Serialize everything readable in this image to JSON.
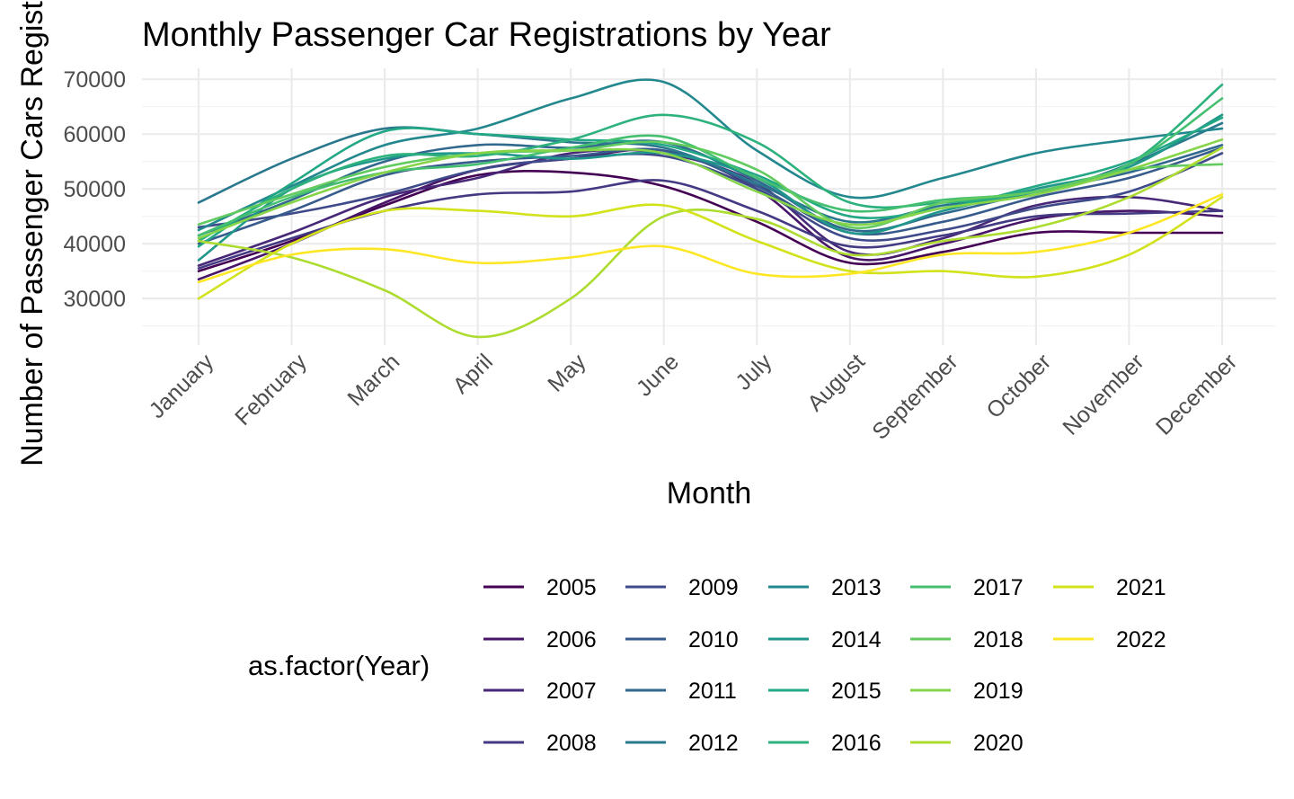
{
  "chart_data": {
    "type": "line",
    "title": "Monthly Passenger Car Registrations by Year",
    "xlabel": "Month",
    "ylabel": "Number of Passenger Cars Registered",
    "categories": [
      "January",
      "February",
      "March",
      "April",
      "May",
      "June",
      "July",
      "August",
      "September",
      "October",
      "November",
      "December"
    ],
    "y_ticks": [
      30000,
      40000,
      50000,
      60000,
      70000
    ],
    "ylim": [
      21500,
      72000
    ],
    "grid": true,
    "legend": {
      "title": "as.factor(Year)",
      "position": "bottom",
      "columns": 5
    },
    "series": [
      {
        "name": "2005",
        "color": "#440154",
        "values": [
          35000,
          40500,
          47000,
          52500,
          53000,
          50500,
          44000,
          36500,
          38500,
          42000,
          42000,
          42000
        ]
      },
      {
        "name": "2006",
        "color": "#481668",
        "values": [
          33500,
          40000,
          47500,
          53500,
          55500,
          57000,
          50000,
          37500,
          40000,
          44500,
          46000,
          45000
        ]
      },
      {
        "name": "2007",
        "color": "#482878",
        "values": [
          36000,
          42000,
          48500,
          52000,
          56500,
          56500,
          51000,
          38500,
          41000,
          47000,
          48500,
          46000
        ]
      },
      {
        "name": "2008",
        "color": "#443983",
        "values": [
          35500,
          41000,
          46000,
          49000,
          49500,
          51500,
          46000,
          39500,
          41500,
          45000,
          45500,
          46000
        ]
      },
      {
        "name": "2009",
        "color": "#3e4a89",
        "values": [
          43000,
          45500,
          49000,
          53500,
          55500,
          56000,
          50000,
          41000,
          42500,
          46500,
          49500,
          56500
        ]
      },
      {
        "name": "2010",
        "color": "#375b8d",
        "values": [
          40000,
          46000,
          52500,
          55000,
          56000,
          57000,
          50500,
          42000,
          44000,
          48500,
          52000,
          57500
        ]
      },
      {
        "name": "2011",
        "color": "#31688e",
        "values": [
          41500,
          48000,
          55000,
          58000,
          57500,
          58500,
          51500,
          42500,
          45500,
          49500,
          53000,
          58000
        ]
      },
      {
        "name": "2012",
        "color": "#2a788e",
        "values": [
          47500,
          55500,
          61000,
          60000,
          58500,
          57500,
          51000,
          44000,
          47000,
          49000,
          54500,
          62000
        ]
      },
      {
        "name": "2013",
        "color": "#23888e",
        "values": [
          42500,
          50500,
          58000,
          61000,
          66500,
          69500,
          57000,
          48500,
          52000,
          56500,
          59000,
          61000
        ]
      },
      {
        "name": "2014",
        "color": "#1f988b",
        "values": [
          37000,
          50000,
          55500,
          56500,
          55500,
          56500,
          52000,
          42000,
          46000,
          50000,
          54000,
          63500
        ]
      },
      {
        "name": "2015",
        "color": "#22a884",
        "values": [
          39500,
          51000,
          60500,
          60000,
          59000,
          58000,
          52500,
          45000,
          46500,
          50500,
          55000,
          63000
        ]
      },
      {
        "name": "2016",
        "color": "#2db27d",
        "values": [
          40500,
          50000,
          56000,
          56000,
          59000,
          63500,
          58500,
          47500,
          47500,
          49500,
          54500,
          69000
        ]
      },
      {
        "name": "2017",
        "color": "#44bf70",
        "values": [
          41500,
          48500,
          53000,
          54500,
          57500,
          59500,
          52000,
          46000,
          48000,
          49500,
          54500,
          66500
        ]
      },
      {
        "name": "2018",
        "color": "#62cb5f",
        "values": [
          43500,
          49000,
          54000,
          56500,
          57000,
          58500,
          53500,
          43000,
          47500,
          49500,
          53500,
          54500
        ]
      },
      {
        "name": "2019",
        "color": "#86d549",
        "values": [
          41000,
          47500,
          53000,
          56500,
          57000,
          56500,
          49500,
          43500,
          46500,
          49000,
          53500,
          59000
        ]
      },
      {
        "name": "2020",
        "color": "#addc30",
        "values": [
          40500,
          37500,
          31500,
          23000,
          30000,
          45000,
          44500,
          38000,
          40500,
          43000,
          48500,
          57500
        ]
      },
      {
        "name": "2021",
        "color": "#d2e21b",
        "values": [
          30000,
          40000,
          46000,
          46000,
          45000,
          47000,
          40500,
          35000,
          35000,
          34000,
          38000,
          48500
        ]
      },
      {
        "name": "2022",
        "color": "#fde725",
        "values": [
          33000,
          38000,
          39000,
          36500,
          37500,
          39500,
          34500,
          34500,
          38000,
          38500,
          42000,
          49000
        ]
      }
    ]
  }
}
